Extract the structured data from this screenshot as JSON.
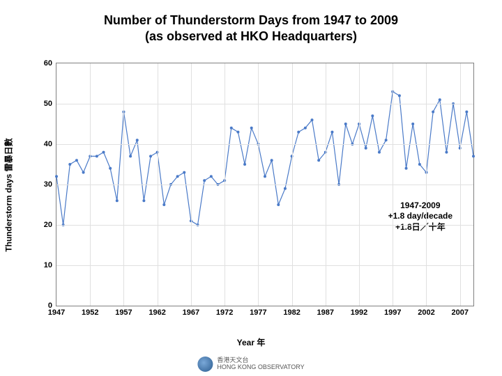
{
  "title_line1": "Number of Thunderstorm Days from 1947 to 2009",
  "title_line2": "(as observed at HKO Headquarters)",
  "y_axis_label": "Thunderstorm days 雷暴日數",
  "x_axis_label": "Year 年",
  "chart": {
    "type": "line",
    "xlim": [
      1947,
      2009
    ],
    "ylim": [
      0,
      60
    ],
    "ytick_step": 10,
    "xtick_step": 5,
    "xticks": [
      1947,
      1952,
      1957,
      1962,
      1967,
      1972,
      1977,
      1982,
      1987,
      1992,
      1997,
      2002,
      2007
    ],
    "yticks": [
      0,
      10,
      20,
      30,
      40,
      50,
      60
    ],
    "line_color": "#4a7ac8",
    "marker_color": "#4a7ac8",
    "marker_size": 4,
    "line_width": 1.2,
    "grid_color": "#e0e0e0",
    "background_color": "#ffffff",
    "border_color": "#808080",
    "title_fontsize": 18,
    "label_fontsize": 12,
    "tick_fontsize": 11,
    "years": [
      1947,
      1948,
      1949,
      1950,
      1951,
      1952,
      1953,
      1954,
      1955,
      1956,
      1957,
      1958,
      1959,
      1960,
      1961,
      1962,
      1963,
      1964,
      1965,
      1966,
      1967,
      1968,
      1969,
      1970,
      1971,
      1972,
      1973,
      1974,
      1975,
      1976,
      1977,
      1978,
      1979,
      1980,
      1981,
      1982,
      1983,
      1984,
      1985,
      1986,
      1987,
      1988,
      1989,
      1990,
      1991,
      1992,
      1993,
      1994,
      1995,
      1996,
      1997,
      1998,
      1999,
      2000,
      2001,
      2002,
      2003,
      2004,
      2005,
      2006,
      2007,
      2008,
      2009
    ],
    "values": [
      32,
      20,
      35,
      36,
      33,
      37,
      37,
      38,
      34,
      26,
      48,
      37,
      41,
      26,
      37,
      38,
      25,
      30,
      32,
      33,
      21,
      20,
      31,
      32,
      30,
      31,
      44,
      43,
      35,
      44,
      40,
      32,
      36,
      25,
      29,
      37,
      43,
      44,
      46,
      36,
      38,
      43,
      30,
      45,
      40,
      45,
      39,
      47,
      38,
      41,
      53,
      52,
      34,
      45,
      35,
      33,
      48,
      51,
      38,
      50,
      39,
      48,
      37
    ]
  },
  "trend": {
    "period": "1947-2009",
    "rate_en": "+1.8 day/decade",
    "rate_zh": "+1.8日／十年"
  },
  "logo": {
    "name_zh": "香港天文台",
    "name_en": "HONG KONG OBSERVATORY"
  }
}
